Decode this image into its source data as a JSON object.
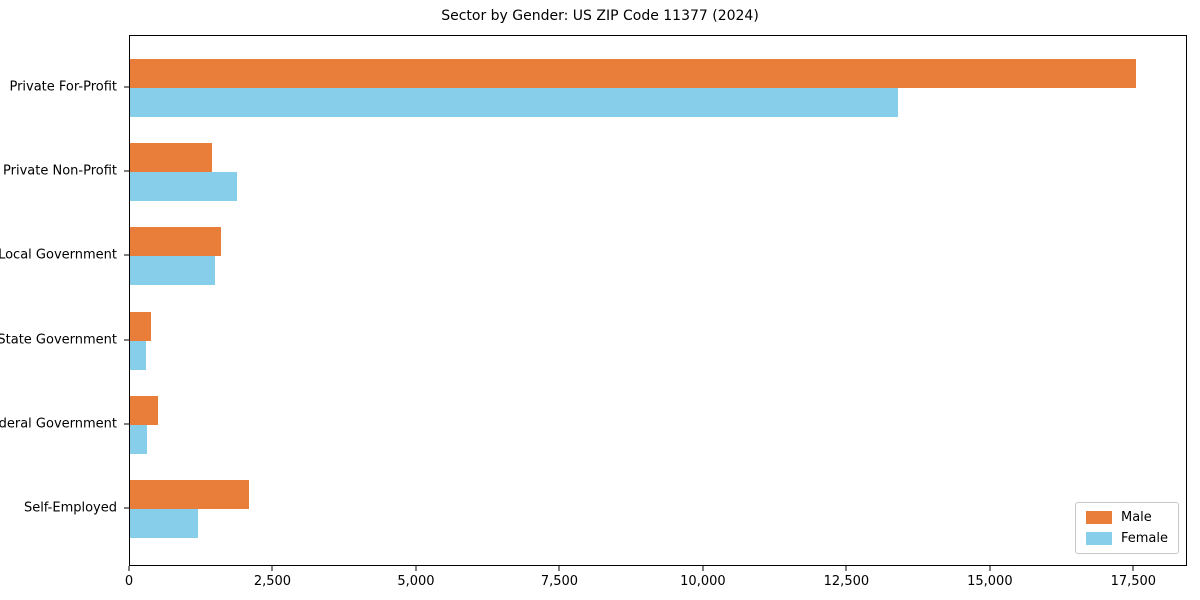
{
  "title": "Sector by Gender: US ZIP Code 11377 (2024)",
  "colors": {
    "male": "#e87e3a",
    "female": "#87ceeb",
    "axis": "#000000",
    "legend_border": "#c8c8c8",
    "background": "#ffffff"
  },
  "legend": {
    "position": "lower right",
    "items": [
      {
        "label": "Male"
      },
      {
        "label": "Female"
      }
    ]
  },
  "chart_data": {
    "type": "bar",
    "orientation": "horizontal",
    "title": "Sector by Gender: US ZIP Code 11377 (2024)",
    "categories": [
      "Private For-Profit",
      "Private Non-Profit",
      "Local Government",
      "State Government",
      "Federal Government",
      "Self-Employed"
    ],
    "series": [
      {
        "name": "Male",
        "color": "#e87e3a",
        "values": [
          17530,
          1430,
          1590,
          360,
          490,
          2070
        ]
      },
      {
        "name": "Female",
        "color": "#87ceeb",
        "values": [
          13380,
          1870,
          1480,
          280,
          300,
          1180
        ]
      }
    ],
    "xlabel": "",
    "ylabel": "",
    "xlim": [
      0,
      18400
    ],
    "x_ticks": [
      0,
      2500,
      5000,
      7500,
      10000,
      12500,
      15000,
      17500
    ],
    "x_tick_labels": [
      "0",
      "2,500",
      "5,000",
      "7,500",
      "10,000",
      "12,500",
      "15,000",
      "17,500"
    ],
    "grid": false,
    "legend_position": "lower right"
  }
}
